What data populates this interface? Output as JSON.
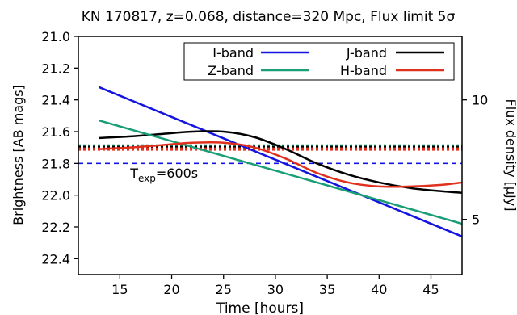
{
  "chart_data": {
    "type": "line",
    "title": "KN 170817, z=0.068, distance=320 Mpc, Flux limit 5σ",
    "xlabel": "Time [hours]",
    "ylabel": "Brightness [AB mags]",
    "y2label": "Flux density [μJy]",
    "xlim": [
      11,
      48
    ],
    "ylim": [
      21.0,
      22.5
    ],
    "y_inverted": true,
    "x_ticks": [
      15,
      20,
      25,
      30,
      35,
      40,
      45
    ],
    "y_ticks": [
      21.0,
      21.2,
      21.4,
      21.6,
      21.8,
      22.0,
      22.2,
      22.4
    ],
    "y2_ticks": [
      10,
      5
    ],
    "legend_position": "top-right",
    "annotation": {
      "text_main": "T",
      "text_sub": "exp",
      "text_tail": "=600s",
      "x": 16,
      "y": 21.86
    },
    "series": [
      {
        "name": "I-band",
        "color": "#1414e0",
        "style": "solid",
        "x": [
          13,
          48
        ],
        "y": [
          21.32,
          22.26
        ]
      },
      {
        "name": "J-band",
        "color": "#000000",
        "style": "solid",
        "x": [
          13,
          16,
          19,
          22,
          25,
          28,
          31,
          34,
          37,
          40,
          43,
          46,
          48
        ],
        "y": [
          21.64,
          21.63,
          21.615,
          21.6,
          21.6,
          21.635,
          21.71,
          21.8,
          21.87,
          21.92,
          21.955,
          21.975,
          21.985
        ]
      },
      {
        "name": "Z-band",
        "color": "#1a9e77",
        "style": "solid",
        "x": [
          13,
          48
        ],
        "y": [
          21.53,
          22.18
        ]
      },
      {
        "name": "H-band",
        "color": "#e0301e",
        "style": "solid",
        "x": [
          13,
          16,
          19,
          22,
          25,
          28,
          31,
          34,
          37,
          40,
          43,
          46,
          48
        ],
        "y": [
          21.71,
          21.7,
          21.685,
          21.67,
          21.67,
          21.7,
          21.77,
          21.86,
          21.92,
          21.945,
          21.945,
          21.935,
          21.92
        ]
      }
    ],
    "limits": [
      {
        "series": "Z-band",
        "color": "#1a9e77",
        "style": "dotted",
        "y": 21.69
      },
      {
        "series": "J-band",
        "color": "#000000",
        "style": "dotted",
        "y": 21.7
      },
      {
        "series": "H-band",
        "color": "#e0301e",
        "style": "dotted",
        "y": 21.71
      },
      {
        "series": "I-band",
        "color": "#1414e0",
        "style": "dashed",
        "y": 21.8
      }
    ]
  }
}
